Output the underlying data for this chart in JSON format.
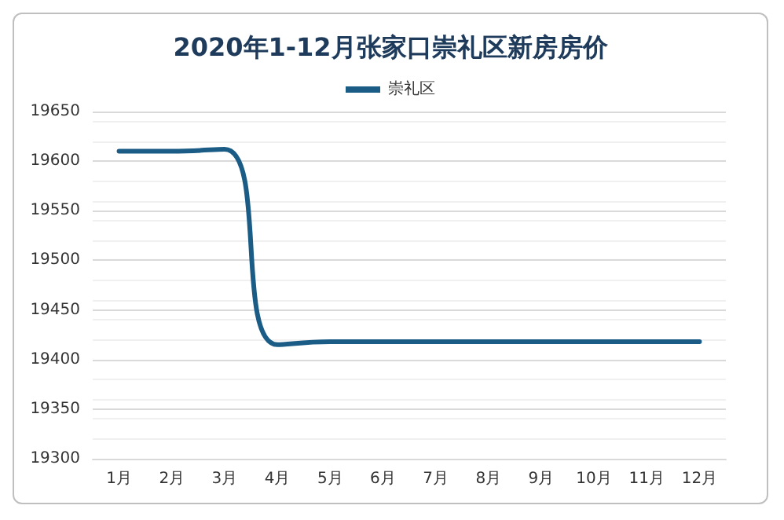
{
  "chart_data": {
    "type": "line",
    "title": "2020年1-12月张家口崇礼区新房房价",
    "categories": [
      "1月",
      "2月",
      "3月",
      "4月",
      "5月",
      "6月",
      "7月",
      "8月",
      "9月",
      "10月",
      "11月",
      "12月"
    ],
    "series": [
      {
        "name": "崇礼区",
        "color": "#1a5c85",
        "values": [
          19610,
          19610,
          19612,
          19415,
          19418,
          19418,
          19418,
          19418,
          19418,
          19418,
          19418,
          19418
        ]
      }
    ],
    "ylim": [
      19300,
      19650
    ],
    "yticks": [
      19300,
      19350,
      19400,
      19450,
      19500,
      19550,
      19600,
      19650
    ],
    "grid": "y",
    "legend": "top",
    "marker": "none",
    "line_style": "solid"
  }
}
